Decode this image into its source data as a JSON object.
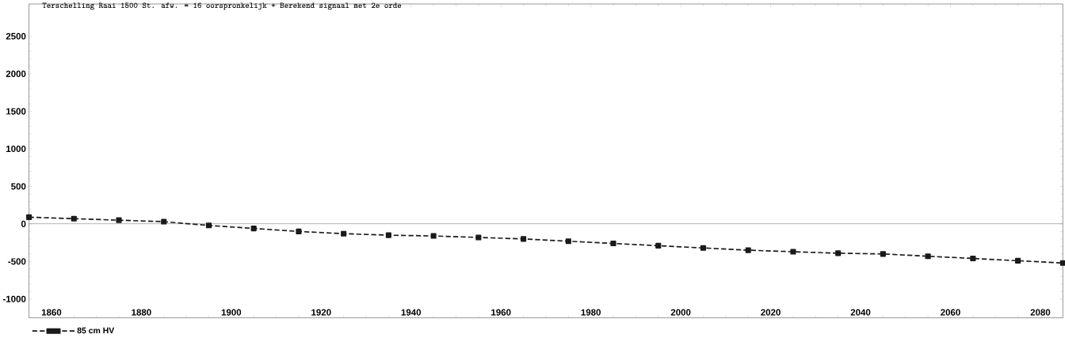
{
  "chart_data": {
    "type": "line",
    "title": "Terschelling    Raai  1500 St. afw. =  16  oorspronkelijk + Berekend signaal met 2e orde",
    "x": [
      1855,
      1865,
      1875,
      1885,
      1895,
      1905,
      1915,
      1925,
      1935,
      1945,
      1955,
      1965,
      1975,
      1985,
      1995,
      2005,
      2015,
      2025,
      2035,
      2045,
      2055,
      2065,
      2075,
      2085
    ],
    "series": [
      {
        "name": "85 cm HV",
        "color": "#1a1a1a",
        "values": [
          90,
          70,
          50,
          30,
          -20,
          -60,
          -100,
          -130,
          -150,
          -160,
          -180,
          -200,
          -230,
          -260,
          -290,
          -320,
          -350,
          -370,
          -390,
          -400,
          -430,
          -460,
          -490,
          -520
        ]
      }
    ],
    "xlim": [
      1855,
      2085
    ],
    "ylim": [
      -1250,
      2930
    ],
    "xticks": [
      1860,
      1880,
      1900,
      1920,
      1940,
      1960,
      1980,
      2000,
      2020,
      2040,
      2060,
      2080
    ],
    "yticks": [
      -1000,
      -500,
      0,
      500,
      1000,
      1500,
      2000,
      2500
    ],
    "ref_lines": [
      {
        "axis": "y",
        "value": 0,
        "color": "#000000",
        "line_style": "solid"
      }
    ],
    "marker": "square",
    "line_style": "dashed",
    "legend": "bottom left",
    "grid": false
  }
}
